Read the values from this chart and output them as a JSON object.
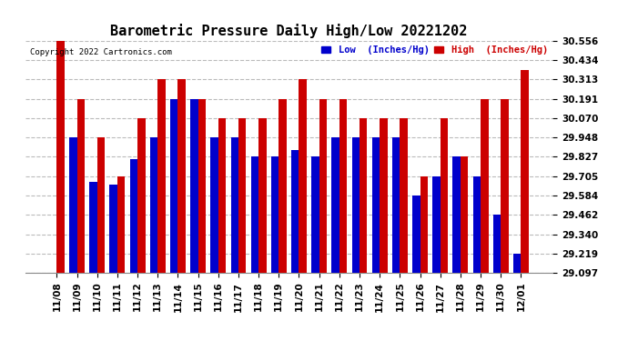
{
  "title": "Barometric Pressure Daily High/Low 20221202",
  "copyright": "Copyright 2022 Cartronics.com",
  "legend_low": "Low  (Inches/Hg)",
  "legend_high": "High  (Inches/Hg)",
  "dates": [
    "11/08",
    "11/09",
    "11/10",
    "11/11",
    "11/12",
    "11/13",
    "11/14",
    "11/15",
    "11/16",
    "11/17",
    "11/18",
    "11/19",
    "11/20",
    "11/21",
    "11/22",
    "11/23",
    "11/24",
    "11/25",
    "11/26",
    "11/27",
    "11/28",
    "11/29",
    "11/30",
    "12/01"
  ],
  "low": [
    29.097,
    29.948,
    29.67,
    29.65,
    29.81,
    29.948,
    30.191,
    30.191,
    29.948,
    29.948,
    29.827,
    29.827,
    29.87,
    29.827,
    29.948,
    29.948,
    29.948,
    29.948,
    29.584,
    29.705,
    29.827,
    29.705,
    29.462,
    29.219
  ],
  "high": [
    30.556,
    30.191,
    29.948,
    29.705,
    30.07,
    30.313,
    30.313,
    30.191,
    30.07,
    30.07,
    30.07,
    30.191,
    30.313,
    30.191,
    30.191,
    30.07,
    30.07,
    30.07,
    29.705,
    30.07,
    29.827,
    30.191,
    30.191,
    30.375
  ],
  "ylim_min": 29.097,
  "ylim_max": 30.556,
  "yticks": [
    29.097,
    29.219,
    29.34,
    29.462,
    29.584,
    29.705,
    29.827,
    29.948,
    30.07,
    30.191,
    30.313,
    30.434,
    30.556
  ],
  "color_low": "#0000cc",
  "color_high": "#cc0000",
  "bg_color": "#ffffff",
  "bar_width": 0.38,
  "title_fontsize": 11,
  "tick_fontsize": 7.5,
  "grid_color": "#bbbbbb"
}
